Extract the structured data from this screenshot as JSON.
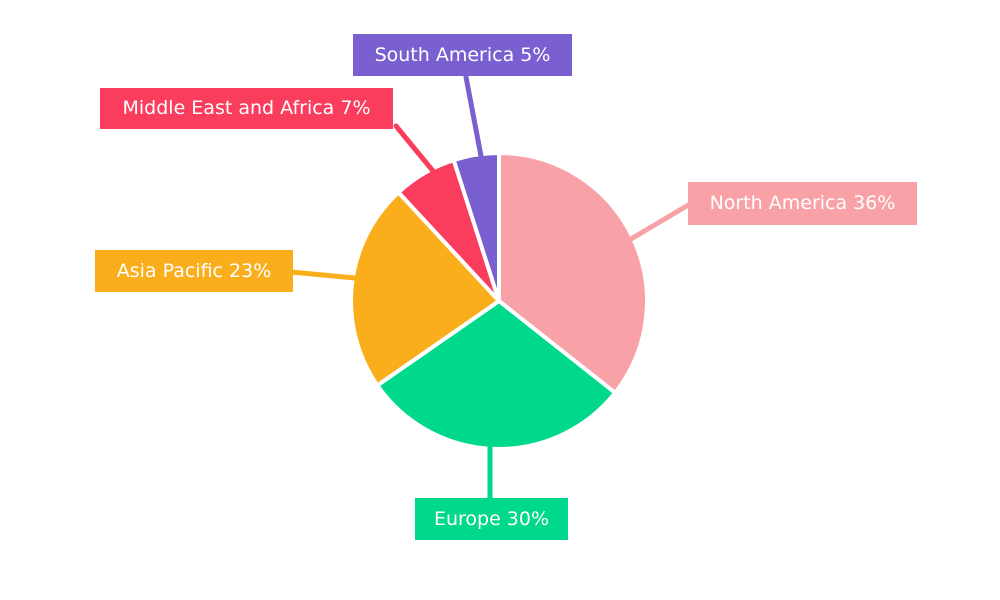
{
  "chart_data": {
    "type": "pie",
    "title": "",
    "unit": "%",
    "direction": "clockwise",
    "start_angle_deg": 0,
    "background": "#ffffff",
    "legend_position": "callout-labels",
    "slices": [
      {
        "label": "North America",
        "value": 36,
        "display": "North America 36%",
        "color": "#F8A2A8"
      },
      {
        "label": "Europe",
        "value": 30,
        "display": "Europe 30%",
        "color": "#00D98B"
      },
      {
        "label": "Asia Pacific",
        "value": 23,
        "display": "Asia Pacific 23%",
        "color": "#FBAE1C"
      },
      {
        "label": "Middle East and Africa",
        "value": 7,
        "display": "Middle East and Africa 7%",
        "color": "#FA3C5D"
      },
      {
        "label": "South America",
        "value": 5,
        "display": "South America 5%",
        "color": "#7A5FD0"
      }
    ]
  }
}
